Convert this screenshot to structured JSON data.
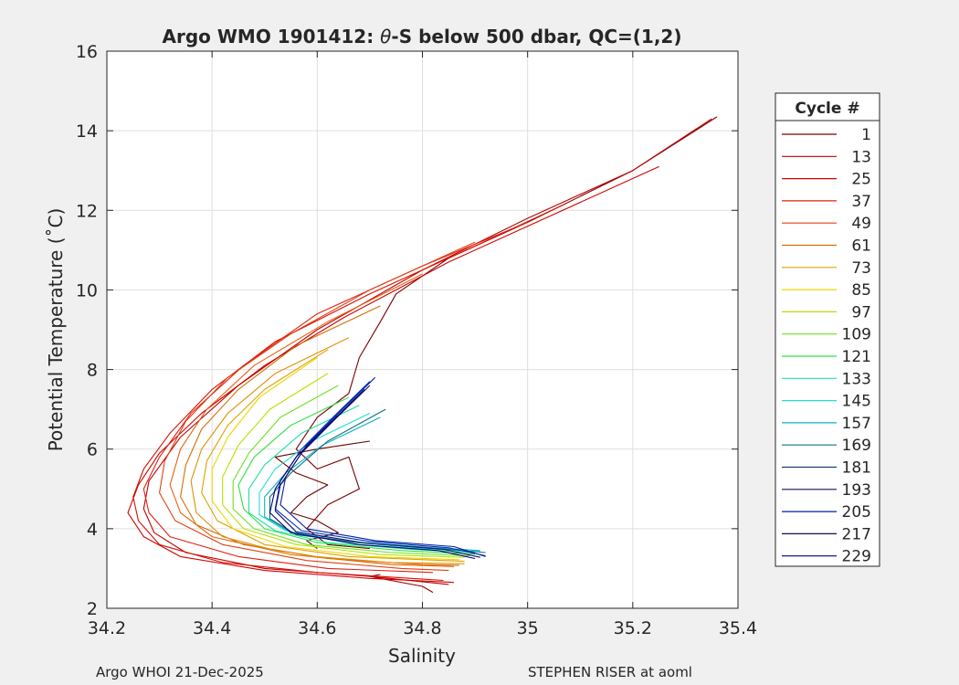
{
  "chart_data": {
    "type": "line",
    "title_prefix": "Argo WMO 1901412: ",
    "title_theta": "θ",
    "title_suffix": "-S below 500 dbar,  QC=(1,2)",
    "xlabel": "Salinity",
    "ylabel": "Potential Temperature (˚C)",
    "xlim": [
      34.2,
      35.4
    ],
    "ylim": [
      2,
      16
    ],
    "x_ticks": [
      34.2,
      34.4,
      34.6,
      34.8,
      35.0,
      35.2,
      35.4
    ],
    "x_tick_labels": [
      "34.2",
      "34.4",
      "34.6",
      "34.8",
      "35",
      "35.2",
      "35.4"
    ],
    "y_ticks": [
      2,
      4,
      6,
      8,
      10,
      12,
      14,
      16
    ],
    "y_tick_labels": [
      "2",
      "4",
      "6",
      "8",
      "10",
      "12",
      "14",
      "16"
    ],
    "grid": true,
    "legend_position": "outside-right",
    "legend": {
      "title": "Cycle #",
      "entries": [
        {
          "label": "1",
          "color": "#7a0000"
        },
        {
          "label": "13",
          "color": "#b80000"
        },
        {
          "label": "25",
          "color": "#d00000"
        },
        {
          "label": "37",
          "color": "#e02010"
        },
        {
          "label": "49",
          "color": "#e04010"
        },
        {
          "label": "61",
          "color": "#d07000"
        },
        {
          "label": "73",
          "color": "#e0a000"
        },
        {
          "label": "85",
          "color": "#e8d800"
        },
        {
          "label": "97",
          "color": "#b8e000"
        },
        {
          "label": "109",
          "color": "#70e020"
        },
        {
          "label": "121",
          "color": "#30e040"
        },
        {
          "label": "133",
          "color": "#20e0a0"
        },
        {
          "label": "145",
          "color": "#20e0d0"
        },
        {
          "label": "157",
          "color": "#10b0c0"
        },
        {
          "label": "169",
          "color": "#107080"
        },
        {
          "label": "181",
          "color": "#104070"
        },
        {
          "label": "193",
          "color": "#101060"
        },
        {
          "label": "205",
          "color": "#0020a0"
        },
        {
          "label": "217",
          "color": "#101050"
        },
        {
          "label": "229",
          "color": "#000080"
        }
      ]
    },
    "series": [
      {
        "color": "#7a0000",
        "x": [
          35.36,
          35.2,
          35.0,
          34.85,
          34.75,
          34.72,
          34.68,
          34.66
        ],
        "y": [
          14.35,
          13.0,
          11.7,
          10.8,
          9.9,
          9.2,
          8.3,
          7.4
        ]
      },
      {
        "color": "#7a0000",
        "x": [
          34.66,
          34.6,
          34.56,
          34.6,
          34.66,
          34.68,
          34.62,
          34.58,
          34.62,
          34.7
        ],
        "y": [
          7.4,
          6.8,
          6.0,
          5.5,
          5.8,
          5.0,
          4.6,
          4.0,
          3.6,
          3.5
        ]
      },
      {
        "color": "#6a0000",
        "x": [
          34.7,
          34.6,
          34.52,
          34.56,
          34.62,
          34.58,
          34.55,
          34.6,
          34.64,
          34.58,
          34.6
        ],
        "y": [
          6.2,
          6.0,
          5.8,
          5.4,
          5.1,
          4.8,
          4.4,
          4.2,
          3.9,
          3.7,
          3.5
        ]
      },
      {
        "color": "#a00000",
        "x": [
          34.82,
          34.8,
          34.74,
          34.7,
          34.72
        ],
        "y": [
          2.4,
          2.55,
          2.7,
          2.8,
          2.85
        ]
      },
      {
        "color": "#c00000",
        "x": [
          35.35,
          35.2,
          35.0,
          34.8,
          34.6,
          34.45,
          34.34,
          34.28,
          34.27,
          34.29,
          34.35,
          34.5,
          34.7,
          34.85
        ],
        "y": [
          14.3,
          13.0,
          11.8,
          10.5,
          9.0,
          7.6,
          6.3,
          5.2,
          4.5,
          3.9,
          3.4,
          3.0,
          2.8,
          2.6
        ]
      },
      {
        "color": "#d00000",
        "x": [
          35.25,
          35.05,
          34.85,
          34.65,
          34.5,
          34.38,
          34.3,
          34.26,
          34.24,
          34.27,
          34.34,
          34.5,
          34.7,
          34.86
        ],
        "y": [
          13.1,
          11.9,
          10.7,
          9.3,
          8.1,
          6.9,
          5.9,
          5.1,
          4.4,
          3.8,
          3.3,
          2.95,
          2.75,
          2.65
        ]
      },
      {
        "color": "#d81000",
        "x": [
          35.07,
          34.9,
          34.7,
          34.52,
          34.4,
          34.32,
          34.27,
          34.25,
          34.26,
          34.3,
          34.42,
          34.6,
          34.78,
          34.84
        ],
        "y": [
          12.15,
          11.1,
          9.9,
          8.7,
          7.5,
          6.4,
          5.5,
          4.8,
          4.2,
          3.6,
          3.15,
          2.9,
          2.75,
          2.7
        ]
      },
      {
        "color": "#e02010",
        "x": [
          35.0,
          34.8,
          34.6,
          34.46,
          34.36,
          34.3,
          34.27,
          34.28,
          34.32,
          34.45,
          34.62,
          34.82
        ],
        "y": [
          11.7,
          10.6,
          9.4,
          8.1,
          6.9,
          5.8,
          5.0,
          4.4,
          3.8,
          3.3,
          3.0,
          2.9
        ]
      },
      {
        "color": "#e04010",
        "x": [
          34.9,
          34.7,
          34.55,
          34.43,
          34.35,
          34.31,
          34.3,
          34.33,
          34.42,
          34.58,
          34.76,
          34.85
        ],
        "y": [
          11.2,
          10.0,
          8.9,
          7.8,
          6.7,
          5.7,
          4.9,
          4.2,
          3.6,
          3.2,
          3.0,
          2.95
        ]
      },
      {
        "color": "#e86010",
        "x": [
          34.8,
          34.62,
          34.48,
          34.39,
          34.34,
          34.32,
          34.34,
          34.4,
          34.55,
          34.74,
          34.86
        ],
        "y": [
          10.4,
          9.2,
          8.1,
          7.0,
          6.0,
          5.1,
          4.4,
          3.8,
          3.35,
          3.1,
          3.05
        ]
      },
      {
        "color": "#d07000",
        "x": [
          34.72,
          34.56,
          34.45,
          34.38,
          34.35,
          34.34,
          34.37,
          34.46,
          34.62,
          34.8,
          34.87
        ],
        "y": [
          9.6,
          8.6,
          7.5,
          6.5,
          5.6,
          4.8,
          4.1,
          3.6,
          3.25,
          3.1,
          3.08
        ]
      },
      {
        "color": "#e09000",
        "x": [
          34.66,
          34.52,
          34.43,
          34.38,
          34.36,
          34.37,
          34.42,
          34.55,
          34.74,
          34.88
        ],
        "y": [
          8.8,
          7.9,
          6.9,
          6.0,
          5.2,
          4.4,
          3.8,
          3.35,
          3.15,
          3.12
        ]
      },
      {
        "color": "#e0a000",
        "x": [
          34.62,
          34.5,
          34.43,
          34.39,
          34.38,
          34.41,
          34.5,
          34.66,
          34.84,
          34.88
        ],
        "y": [
          8.5,
          7.5,
          6.6,
          5.7,
          4.9,
          4.2,
          3.6,
          3.3,
          3.2,
          3.18
        ]
      },
      {
        "color": "#e8d800",
        "x": [
          34.6,
          34.49,
          34.43,
          34.4,
          34.4,
          34.44,
          34.54,
          34.7,
          34.87
        ],
        "y": [
          8.3,
          7.3,
          6.3,
          5.5,
          4.7,
          4.0,
          3.55,
          3.3,
          3.22
        ]
      },
      {
        "color": "#b8e000",
        "x": [
          34.62,
          34.51,
          34.45,
          34.42,
          34.42,
          34.46,
          34.56,
          34.72,
          34.88
        ],
        "y": [
          7.9,
          7.0,
          6.1,
          5.3,
          4.6,
          4.0,
          3.6,
          3.35,
          3.28
        ]
      },
      {
        "color": "#70e020",
        "x": [
          34.64,
          34.53,
          34.47,
          34.44,
          34.44,
          34.48,
          34.58,
          34.74,
          34.89
        ],
        "y": [
          7.6,
          6.8,
          5.9,
          5.2,
          4.5,
          4.0,
          3.6,
          3.4,
          3.32
        ]
      },
      {
        "color": "#30e040",
        "x": [
          34.66,
          34.55,
          34.48,
          34.45,
          34.46,
          34.5,
          34.6,
          34.76,
          34.9
        ],
        "y": [
          7.3,
          6.6,
          5.8,
          5.1,
          4.5,
          4.0,
          3.65,
          3.45,
          3.36
        ]
      },
      {
        "color": "#20e0a0",
        "x": [
          34.68,
          34.57,
          34.5,
          34.47,
          34.47,
          34.52,
          34.62,
          34.78,
          34.9
        ],
        "y": [
          7.1,
          6.4,
          5.6,
          5.0,
          4.4,
          3.95,
          3.65,
          3.48,
          3.4
        ]
      },
      {
        "color": "#20e0d0",
        "x": [
          34.7,
          34.59,
          34.52,
          34.49,
          34.49,
          34.54,
          34.65,
          34.8,
          34.91
        ],
        "y": [
          6.9,
          6.2,
          5.5,
          4.9,
          4.35,
          3.95,
          3.68,
          3.5,
          3.42
        ]
      },
      {
        "color": "#10b0c0",
        "x": [
          34.72,
          34.61,
          34.54,
          34.5,
          34.5,
          34.55,
          34.66,
          34.82,
          34.91
        ],
        "y": [
          6.8,
          6.1,
          5.4,
          4.8,
          4.3,
          3.9,
          3.68,
          3.52,
          3.45
        ]
      },
      {
        "color": "#107080",
        "x": [
          34.73,
          34.62,
          34.55,
          34.51,
          34.51,
          34.56,
          34.68,
          34.83,
          34.92
        ],
        "y": [
          7.0,
          6.2,
          5.4,
          4.8,
          4.25,
          3.85,
          3.65,
          3.5,
          3.4
        ]
      },
      {
        "color": "#0030c0",
        "x": [
          34.7,
          34.63,
          34.57,
          34.53,
          34.52,
          34.57,
          34.7,
          34.85,
          34.92
        ],
        "y": [
          7.7,
          6.8,
          6.0,
          5.2,
          4.5,
          3.95,
          3.68,
          3.52,
          3.32
        ]
      },
      {
        "color": "#0020a0",
        "x": [
          34.71,
          34.64,
          34.58,
          34.54,
          34.53,
          34.58,
          34.71,
          34.86,
          34.92
        ],
        "y": [
          7.8,
          6.9,
          6.1,
          5.3,
          4.6,
          4.0,
          3.7,
          3.55,
          3.3
        ]
      },
      {
        "color": "#101060",
        "x": [
          34.7,
          34.63,
          34.57,
          34.53,
          34.52,
          34.56,
          34.69,
          34.84,
          34.91
        ],
        "y": [
          7.6,
          6.7,
          5.9,
          5.1,
          4.45,
          3.92,
          3.64,
          3.48,
          3.28
        ]
      },
      {
        "color": "#000080",
        "x": [
          34.69,
          34.62,
          34.56,
          34.52,
          34.51,
          34.55,
          34.68,
          34.83,
          34.9
        ],
        "y": [
          7.5,
          6.6,
          5.8,
          5.0,
          4.4,
          3.9,
          3.6,
          3.45,
          3.25
        ]
      }
    ],
    "annotations": {
      "bottom_left": "Argo WHOI 21-Dec-2025",
      "bottom_right": "STEPHEN RISER at aoml"
    }
  }
}
